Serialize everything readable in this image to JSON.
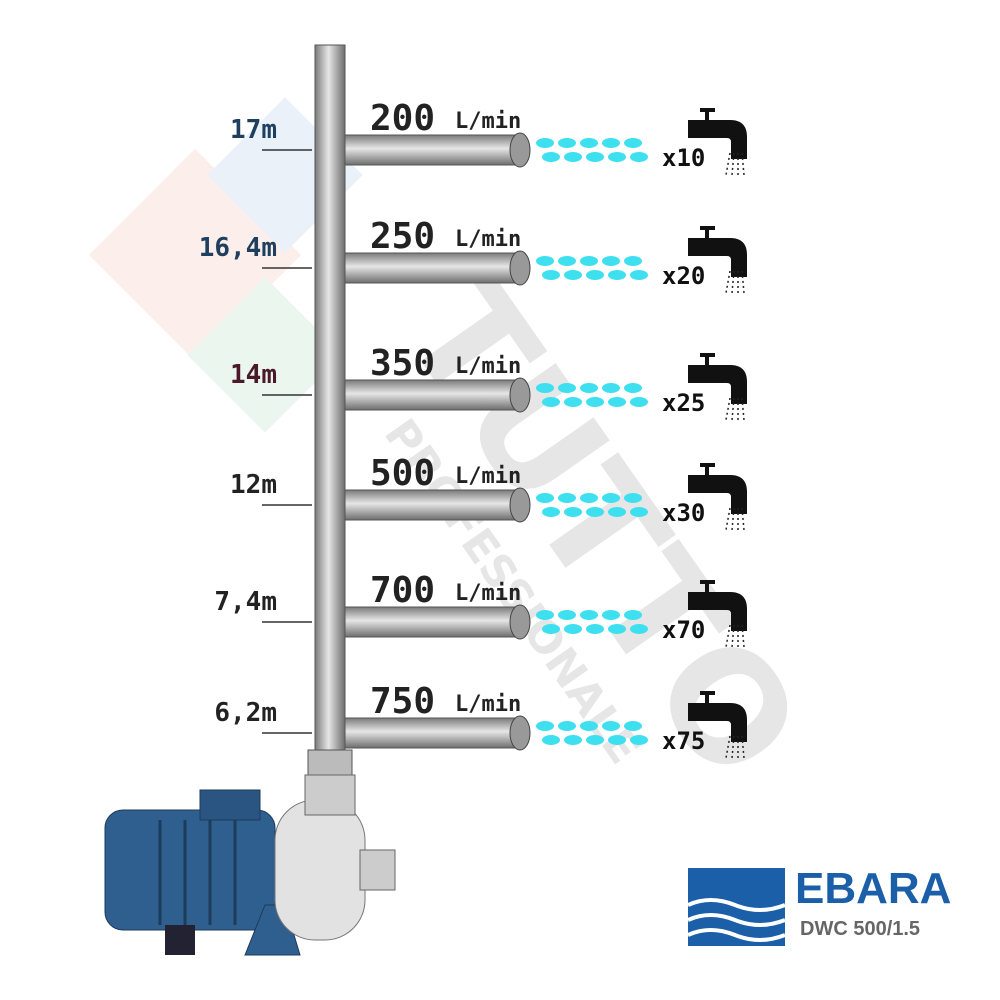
{
  "watermark": [
    "TUTTO",
    "PROFESSIONALE"
  ],
  "levels": [
    {
      "height": "17m",
      "flow": "200",
      "unit": "L/min",
      "taps": "x10"
    },
    {
      "height": "16,4m",
      "flow": "250",
      "unit": "L/min",
      "taps": "x20"
    },
    {
      "height": "14m",
      "flow": "350",
      "unit": "L/min",
      "taps": "x25"
    },
    {
      "height": "12m",
      "flow": "500",
      "unit": "L/min",
      "taps": "x30"
    },
    {
      "height": "7,4m",
      "flow": "700",
      "unit": "L/min",
      "taps": "x70"
    },
    {
      "height": "6,2m",
      "flow": "750",
      "unit": "L/min",
      "taps": "x75"
    }
  ],
  "logo": {
    "brand": "EBARA",
    "model": "DWC 500/1.5"
  }
}
